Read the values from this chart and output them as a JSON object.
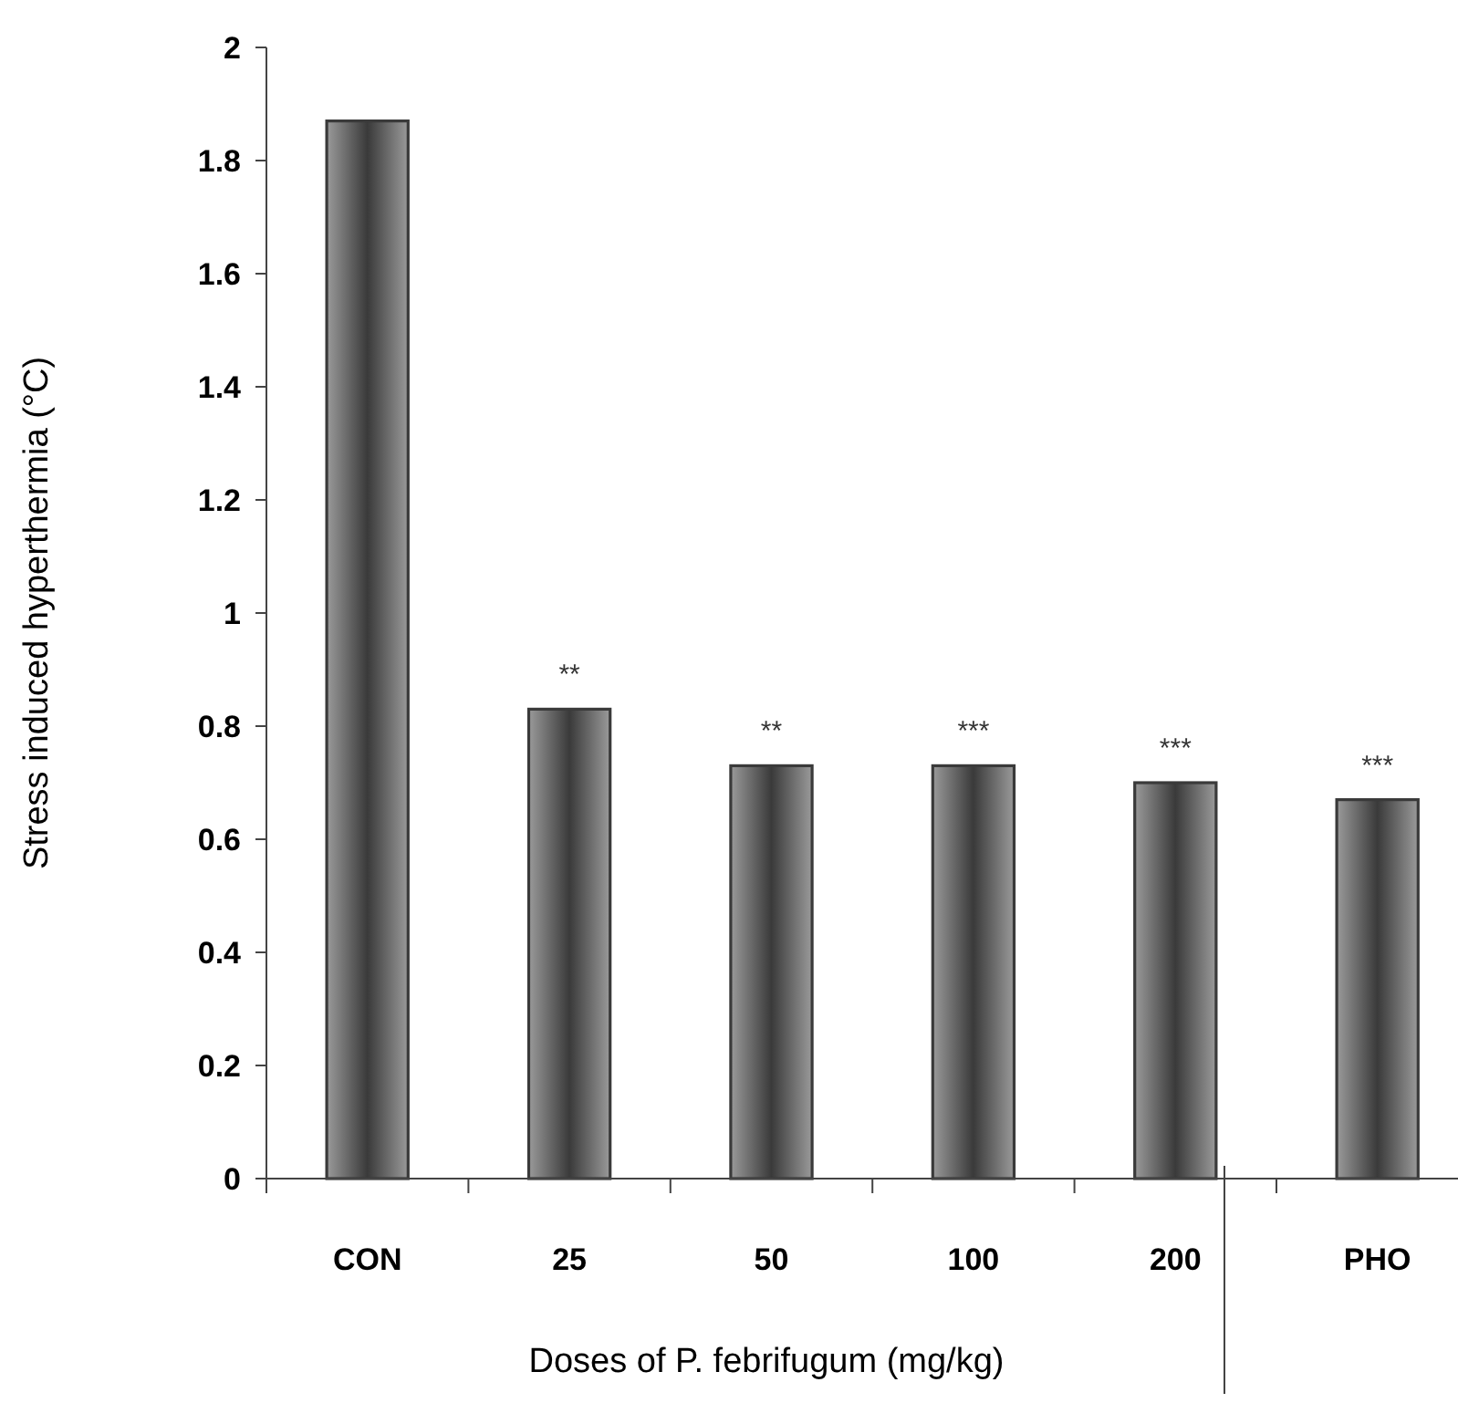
{
  "chart_data": {
    "type": "bar",
    "xlabel": "Doses of P. febrifugum  (mg/kg)",
    "ylabel": "Stress induced hyperthermia (°C)",
    "categories": [
      "CON",
      "25",
      "50",
      "100",
      "200",
      "PHO"
    ],
    "values": [
      1.87,
      0.83,
      0.73,
      0.73,
      0.7,
      0.67
    ],
    "color": "#3a3a3a",
    "ylim": [
      0,
      2
    ],
    "yticks": [
      0,
      {
        "value": 0.2,
        "label": "0.2"
      },
      {
        "value": 0.4,
        "label": "0.4"
      },
      {
        "value": 0.6,
        "label": "0.6"
      },
      {
        "value": 0.8,
        "label": "0.8"
      },
      1,
      {
        "value": 1.2,
        "label": "1.2"
      },
      {
        "value": 1.4,
        "label": "1.4"
      },
      {
        "value": 1.6,
        "label": "1.6"
      },
      {
        "value": 1.8,
        "label": "1.8"
      },
      2
    ],
    "grid": false,
    "annotations": [
      {
        "text": "**",
        "x": "25",
        "y": 0.83
      },
      {
        "text": "**",
        "x": "50",
        "y": 0.73
      },
      {
        "text": "***",
        "x": "100",
        "y": 0.73
      },
      {
        "text": "***",
        "x": "200",
        "y": 0.7
      },
      {
        "text": "***",
        "x": "PHO",
        "y": 0.67
      }
    ]
  }
}
